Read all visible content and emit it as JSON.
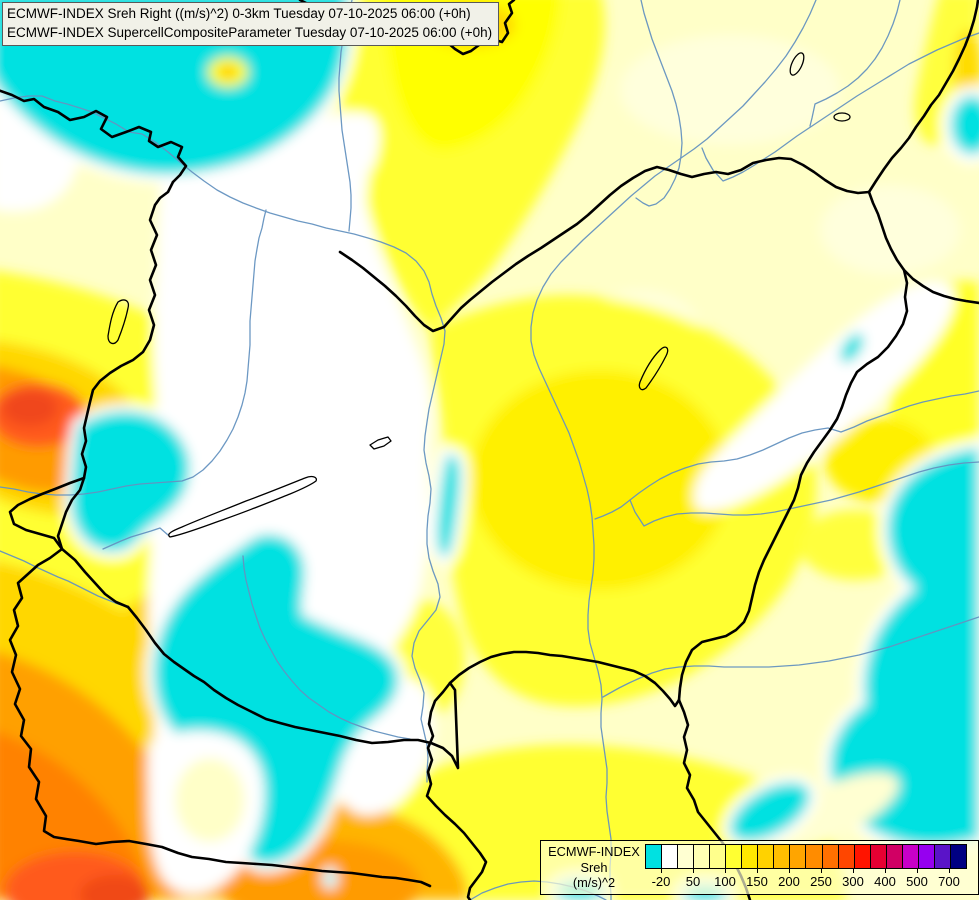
{
  "header": {
    "line1": "ECMWF-INDEX Sreh Right ((m/s)^2) 0-3km Tuesday 07-10-2025 06:00 (+0h)",
    "line2": "ECMWF-INDEX SupercellCompositeParameter Tuesday 07-10-2025 06:00 (+0h)"
  },
  "legend": {
    "model": "ECMWF-INDEX",
    "parameter": "Sreh",
    "unit": "(m/s)^2",
    "tick_labels": [
      "-20",
      "50",
      "100",
      "150",
      "200",
      "250",
      "300",
      "400",
      "500",
      "700"
    ],
    "colors": [
      "#00E1E1",
      "#FFFFFF",
      "#FFFFD2",
      "#FFFFB4",
      "#FFFF8C",
      "#FFFF32",
      "#FFE800",
      "#FFD200",
      "#FFBE00",
      "#FFA500",
      "#FF8C00",
      "#FF7000",
      "#FF4600",
      "#FF1400",
      "#E60032",
      "#D10064",
      "#C800C8",
      "#9600F0",
      "#5A14C8",
      "#000082"
    ]
  },
  "map_palette": {
    "background_low": "#FFFFC8",
    "negative_sreh_cyan": "#00E1E1",
    "neutral_white": "#FFFFFF",
    "moderate_yellow": "#FFFF32",
    "elevated_gold": "#FFD700",
    "high_orange": "#FF9B00",
    "very_high_red_orange": "#FF5A1E",
    "border_color": "#000000",
    "river_color": "#6593C0"
  }
}
